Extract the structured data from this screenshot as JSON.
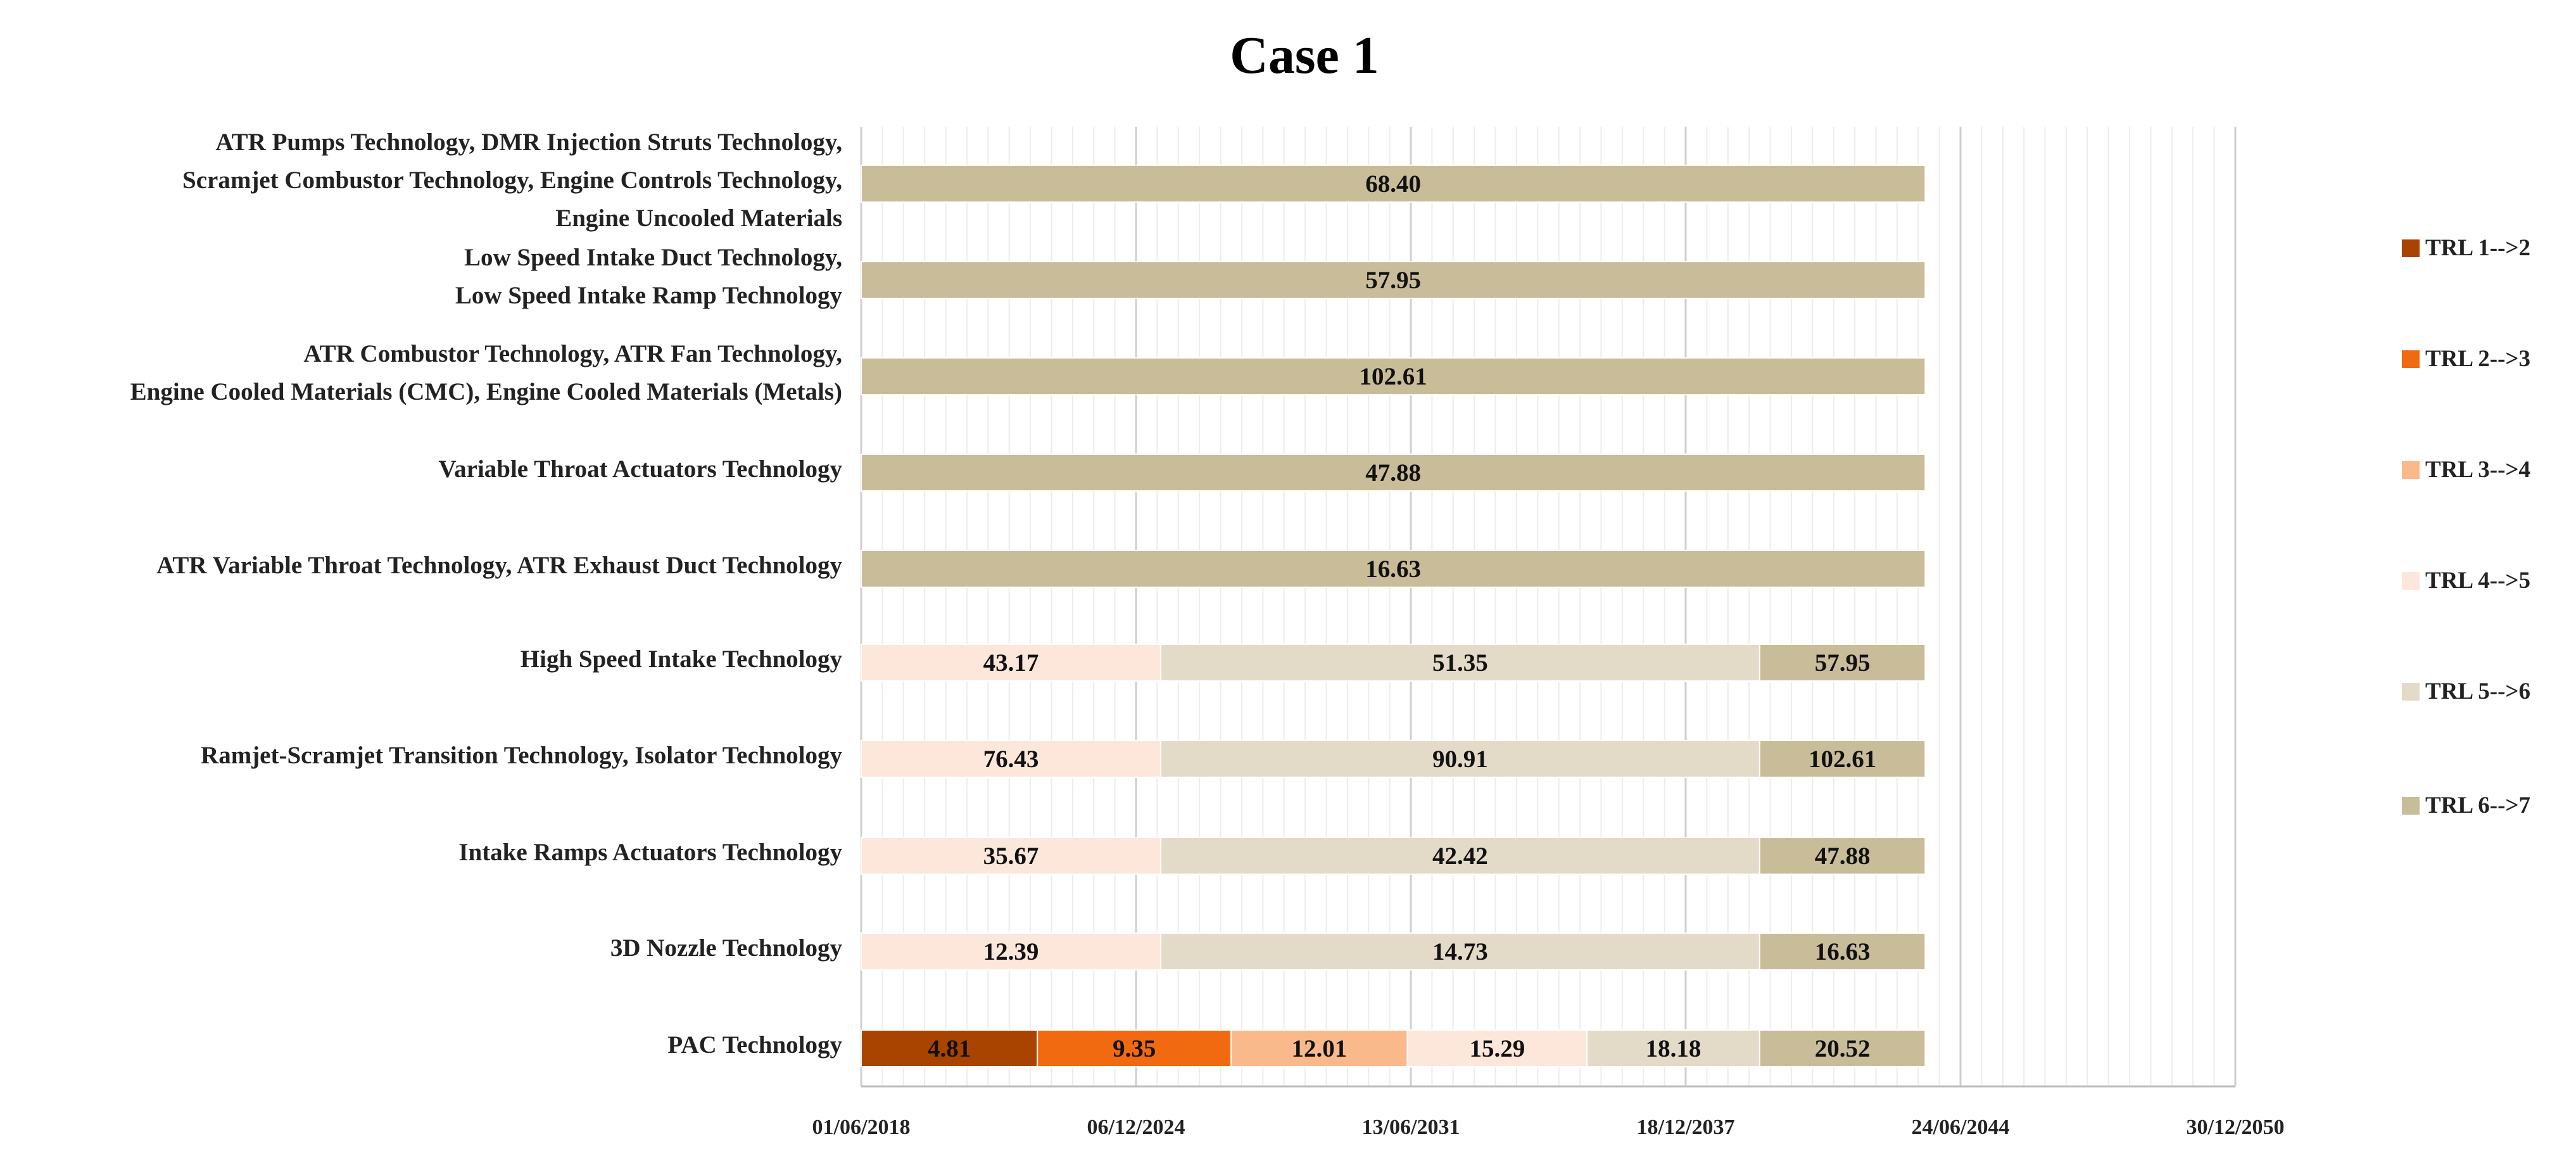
{
  "chart_data": {
    "type": "bar",
    "orientation": "horizontal",
    "stacked": true,
    "title": "Case 1",
    "xlabel": "",
    "ylabel": "",
    "x_axis_type": "date",
    "x_tick_labels": [
      "01/06/2018",
      "06/12/2024",
      "13/06/2031",
      "18/12/2037",
      "24/06/2044",
      "30/12/2050"
    ],
    "x_tick_values_months": [
      0,
      78,
      156,
      234,
      312,
      390
    ],
    "xlim_months": [
      0,
      390
    ],
    "bar_value_unit": "months",
    "grid": "vertical",
    "legend_position": "right",
    "categories": [
      "ATR Pumps Technology, DMR Injection Struts Technology, Scramjet Combustor Technology, Engine Controls Technology, Engine Uncooled Materials",
      "Low Speed Intake Duct Technology, Low Speed Intake Ramp Technology",
      "ATR Combustor Technology, ATR Fan Technology, Engine Cooled Materials (CMC), Engine Cooled Materials (Metals)",
      "Variable Throat Actuators Technology",
      "ATR Variable Throat Technology, ATR Exhaust Duct Technology",
      "High Speed Intake Technology",
      "Ramjet-Scramjet Transition Technology, Isolator Technology",
      "Intake Ramps Actuators Technology",
      "3D Nozzle Technology",
      "PAC Technology"
    ],
    "category_label_lines": [
      [
        "ATR Pumps Technology, DMR Injection Struts Technology,",
        "Scramjet Combustor Technology, Engine Controls Technology,",
        "Engine Uncooled Materials"
      ],
      [
        "Low Speed Intake Duct Technology,",
        "Low Speed Intake Ramp Technology"
      ],
      [
        "ATR Combustor Technology, ATR Fan Technology,",
        "Engine Cooled Materials (CMC), Engine Cooled Materials (Metals)"
      ],
      [
        "Variable Throat Actuators Technology"
      ],
      [
        "ATR Variable Throat Technology, ATR Exhaust Duct Technology"
      ],
      [
        "High Speed Intake Technology"
      ],
      [
        "Ramjet-Scramjet Transition Technology, Isolator Technology"
      ],
      [
        "Intake Ramps Actuators Technology"
      ],
      [
        "3D Nozzle Technology"
      ],
      [
        "PAC Technology"
      ]
    ],
    "series": [
      {
        "name": "TRL 1-->2",
        "color": "#A84300",
        "values": [
          null,
          null,
          null,
          null,
          null,
          null,
          null,
          null,
          null,
          4.81
        ]
      },
      {
        "name": "TRL 2-->3",
        "color": "#F26A0F",
        "values": [
          null,
          null,
          null,
          null,
          null,
          null,
          null,
          null,
          null,
          9.35
        ]
      },
      {
        "name": "TRL 3-->4",
        "color": "#F9B98A",
        "values": [
          null,
          null,
          null,
          null,
          null,
          null,
          null,
          null,
          null,
          12.01
        ]
      },
      {
        "name": "TRL 4-->5",
        "color": "#FCE7DA",
        "values": [
          null,
          null,
          null,
          null,
          null,
          43.17,
          76.43,
          35.67,
          12.39,
          15.29
        ]
      },
      {
        "name": "TRL 5-->6",
        "color": "#E3DBC7",
        "values": [
          null,
          null,
          null,
          null,
          null,
          51.35,
          90.91,
          42.42,
          14.73,
          18.18
        ]
      },
      {
        "name": "TRL 6-->7",
        "color": "#C9BC98",
        "values": [
          68.4,
          57.95,
          102.61,
          47.88,
          16.63,
          57.95,
          102.61,
          47.88,
          16.63,
          20.52
        ]
      }
    ],
    "segment_durations_months": [
      [
        null,
        null,
        null,
        null,
        null,
        302
      ],
      [
        null,
        null,
        null,
        null,
        null,
        302
      ],
      [
        null,
        null,
        null,
        null,
        null,
        302
      ],
      [
        null,
        null,
        null,
        null,
        null,
        302
      ],
      [
        null,
        null,
        null,
        null,
        null,
        302
      ],
      [
        null,
        null,
        null,
        85,
        170,
        47
      ],
      [
        null,
        null,
        null,
        85,
        170,
        47
      ],
      [
        null,
        null,
        null,
        85,
        170,
        47
      ],
      [
        null,
        null,
        null,
        85,
        170,
        47
      ],
      [
        50,
        55,
        50,
        51,
        49,
        47
      ]
    ]
  }
}
